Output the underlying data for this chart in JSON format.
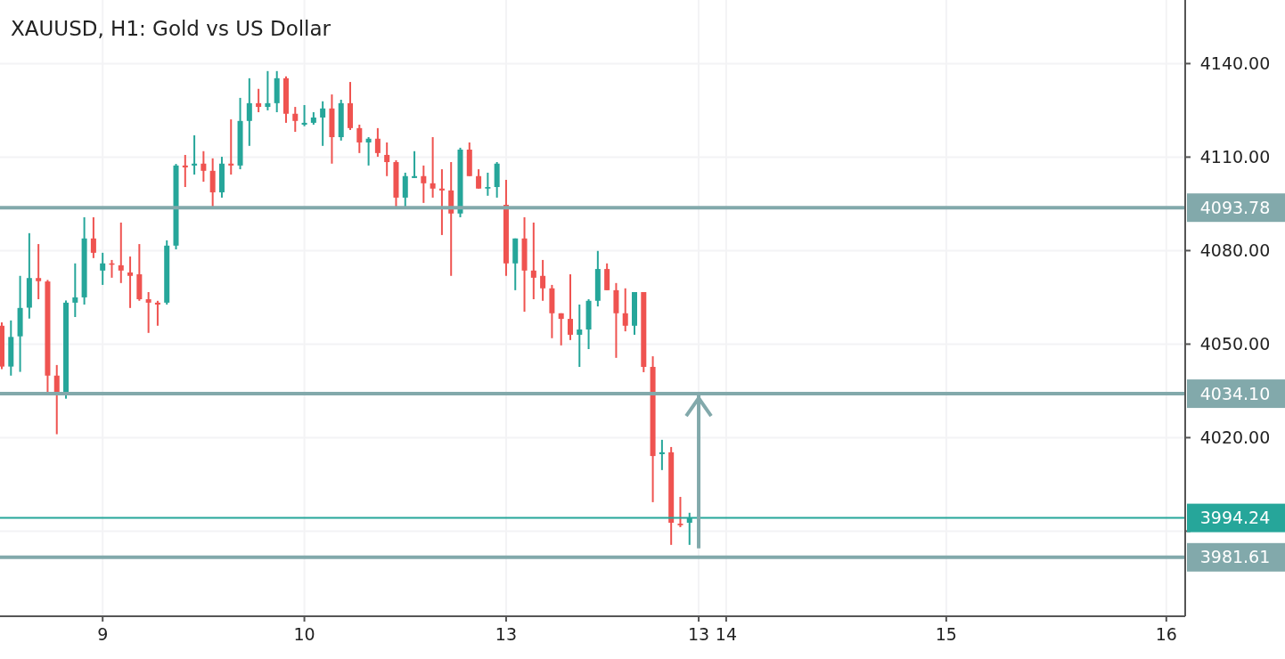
{
  "chart_data": {
    "type": "candlestick",
    "title": "XAUUSD, H1: Gold vs US Dollar",
    "categories": [
      null,
      null,
      null,
      null,
      null,
      null,
      null,
      null,
      null,
      null,
      null,
      "9",
      null,
      null,
      null,
      null,
      null,
      null,
      null,
      null,
      null,
      null,
      null,
      null,
      null,
      null,
      null,
      null,
      null,
      null,
      null,
      null,
      null,
      "10",
      null,
      null,
      null,
      null,
      null,
      null,
      null,
      null,
      null,
      null,
      null,
      null,
      null,
      null,
      null,
      null,
      null,
      null,
      null,
      null,
      null,
      "13",
      null,
      null,
      null,
      null,
      null,
      null,
      null,
      null,
      null,
      null,
      null,
      null,
      null,
      null,
      null,
      null,
      null,
      null,
      null,
      null,
      "13",
      null,
      null,
      "14",
      null,
      null,
      null,
      null,
      null,
      null,
      null,
      null,
      null,
      null,
      null,
      null,
      null,
      null,
      null,
      null,
      null,
      null,
      null,
      null,
      null,
      null,
      null,
      "15",
      null,
      null,
      null,
      null,
      null,
      null,
      null,
      null,
      null,
      null,
      null,
      null,
      null,
      null,
      null,
      null,
      null,
      null,
      null,
      null,
      null,
      null,
      null,
      "16",
      null,
      null
    ],
    "ohlc": [
      [
        4055.9,
        4057,
        4042,
        4042.8
      ],
      [
        4042.8,
        4057.6,
        4039.9,
        4052.3
      ],
      [
        4052.5,
        4071.9,
        4041.1,
        4061.6
      ],
      [
        4061.7,
        4085.6,
        4058.2,
        4071.2
      ],
      [
        4071.2,
        4082.1,
        4064.4,
        4070.2
      ],
      [
        4070.1,
        4070.6,
        4034.2,
        4039.9
      ],
      [
        4039.9,
        4043.3,
        4021.1,
        4033.9
      ],
      [
        4033.9,
        4064,
        4032.5,
        4063.3
      ],
      [
        4063.3,
        4075.9,
        4058.7,
        4065
      ],
      [
        4065,
        4090.7,
        4062.7,
        4083.9
      ],
      [
        4083.9,
        4090.7,
        4077.6,
        4079.3
      ],
      [
        4073.6,
        4079.3,
        4069,
        4075.9
      ],
      [
        4075.9,
        4077,
        4071.3,
        4075.5
      ],
      [
        4075.3,
        4089,
        4069.6,
        4073.6
      ],
      [
        4073,
        4078.1,
        4061.6,
        4071.9
      ],
      [
        4072.4,
        4082.1,
        4063.9,
        4064.4
      ],
      [
        4064.4,
        4066.7,
        4053.6,
        4063.3
      ],
      [
        4063.3,
        4063.9,
        4055.9,
        4062.7
      ],
      [
        4063.3,
        4083.3,
        4062.7,
        4081.6
      ],
      [
        4081.6,
        4107.8,
        4080.4,
        4107.3
      ],
      [
        4107.3,
        4110.7,
        4100.4,
        4106.7
      ],
      [
        4107.3,
        4117,
        4104.4,
        4107.9
      ],
      [
        4107.9,
        4111.9,
        4102.1,
        4105.6
      ],
      [
        4105.6,
        4109.6,
        4093.6,
        4098.7
      ],
      [
        4098.7,
        4110.1,
        4097,
        4107.9
      ],
      [
        4107.9,
        4122.1,
        4104.4,
        4107.3
      ],
      [
        4107.3,
        4129,
        4106.1,
        4121.6
      ],
      [
        4121.6,
        4135.3,
        4113.6,
        4127.3
      ],
      [
        4127.3,
        4131.9,
        4124.4,
        4126.1
      ],
      [
        4126.1,
        4137.6,
        4125,
        4127.3
      ],
      [
        4127.3,
        4137.6,
        4124.4,
        4135.3
      ],
      [
        4135.3,
        4135.9,
        4121,
        4123.9
      ],
      [
        4123.9,
        4126.1,
        4118.1,
        4121.6
      ],
      [
        4120.4,
        4126.7,
        4119.9,
        4121
      ],
      [
        4121,
        4124.4,
        4120.4,
        4122.7
      ],
      [
        4122.7,
        4127.9,
        4113.6,
        4125.6
      ],
      [
        4125.6,
        4130.1,
        4107.9,
        4116.4
      ],
      [
        4116.4,
        4128.4,
        4115.3,
        4127.3
      ],
      [
        4127.3,
        4134.1,
        4118.7,
        4119.3
      ],
      [
        4119.3,
        4120.4,
        4111.3,
        4114.7
      ],
      [
        4114.7,
        4116.4,
        4107.3,
        4115.9
      ],
      [
        4115.9,
        4119.3,
        4110.1,
        4111.3
      ],
      [
        4110.7,
        4114.7,
        4103.9,
        4108.4
      ],
      [
        4108.4,
        4109,
        4094.1,
        4097
      ],
      [
        4097,
        4105,
        4093.6,
        4103.9
      ],
      [
        4103.3,
        4111.9,
        4103.3,
        4103.9
      ],
      [
        4103.9,
        4107.3,
        4095.3,
        4101.6
      ],
      [
        4101.6,
        4116.4,
        4097,
        4099.9
      ],
      [
        4099.9,
        4106.1,
        4085,
        4099.3
      ],
      [
        4099.3,
        4108.4,
        4071.9,
        4091.9
      ],
      [
        4091.9,
        4113,
        4090.7,
        4112.4
      ],
      [
        4112.4,
        4114.7,
        4103.9,
        4103.9
      ],
      [
        4103.9,
        4106.1,
        4099.9,
        4099.9
      ],
      [
        4099.9,
        4105,
        4097.6,
        4100.4
      ],
      [
        4100.4,
        4108.4,
        4097,
        4107.9
      ],
      [
        4094.7,
        4102.7,
        4071.9,
        4075.9
      ],
      [
        4075.9,
        4083.9,
        4067.3,
        4083.9
      ],
      [
        4083.9,
        4090.7,
        4060.4,
        4073.6
      ],
      [
        4073.6,
        4089,
        4064.4,
        4071.3
      ],
      [
        4071.9,
        4077,
        4063.9,
        4067.9
      ],
      [
        4067.9,
        4069,
        4051.9,
        4059.9
      ],
      [
        4059.9,
        4059.9,
        4049.6,
        4058.1
      ],
      [
        4058.1,
        4072.4,
        4051.3,
        4053
      ],
      [
        4053,
        4062.7,
        4042.7,
        4054.7
      ],
      [
        4054.7,
        4064.4,
        4048.4,
        4063.9
      ],
      [
        4063.9,
        4079.9,
        4062.1,
        4074.1
      ],
      [
        4074.1,
        4075.9,
        4067.3,
        4067.3
      ],
      [
        4067.3,
        4069.6,
        4045.6,
        4059.9
      ],
      [
        4059.9,
        4067.9,
        4054.1,
        4055.9
      ],
      [
        4055.9,
        4066.7,
        4053,
        4066.7
      ],
      [
        4066.7,
        4066.7,
        4041,
        4042.7
      ],
      [
        4042.7,
        4046.1,
        3999.3,
        4014.1
      ],
      [
        4014.7,
        4019.3,
        4009.6,
        4015.3
      ],
      [
        4015.3,
        4017,
        3985.6,
        3992.7
      ],
      [
        3992.4,
        4001,
        3991.3,
        3991.9
      ],
      [
        3992.7,
        3995.9,
        3985.6,
        3994.2
      ],
      null,
      null,
      null,
      null,
      null,
      null,
      null,
      null,
      null,
      null,
      null,
      null,
      null,
      null,
      null,
      null,
      null,
      null,
      null,
      null,
      null,
      null,
      null,
      null,
      null,
      null,
      null,
      null,
      null,
      null,
      null,
      null,
      null,
      null,
      null,
      null,
      null,
      null,
      null,
      null,
      null,
      null,
      null,
      null,
      null,
      null,
      null,
      null,
      null,
      null,
      null,
      null,
      null,
      null
    ],
    "colors": [
      "#ef5350",
      "#26a69a",
      "#26a69a",
      "#26a69a",
      "#ef5350",
      "#ef5350",
      "#ef5350",
      "#26a69a",
      "#26a69a",
      "#26a69a",
      "#ef5350",
      "#26a69a",
      "#ef5350",
      "#ef5350",
      "#ef5350",
      "#ef5350",
      "#ef5350",
      "#ef5350",
      "#26a69a",
      "#26a69a",
      "#ef5350",
      "#26a69a",
      "#ef5350",
      "#ef5350",
      "#26a69a",
      "#ef5350",
      "#26a69a",
      "#26a69a",
      "#ef5350",
      "#26a69a",
      "#26a69a",
      "#ef5350",
      "#ef5350",
      "#26a69a",
      "#26a69a",
      "#26a69a",
      "#ef5350",
      "#26a69a",
      "#ef5350",
      "#ef5350",
      "#26a69a",
      "#ef5350",
      "#ef5350",
      "#ef5350",
      "#26a69a",
      "#26a69a",
      "#ef5350",
      "#ef5350",
      "#ef5350",
      "#ef5350",
      "#26a69a",
      "#ef5350",
      "#ef5350",
      "#26a69a",
      "#26a69a",
      "#ef5350",
      "#26a69a",
      "#ef5350",
      "#ef5350",
      "#ef5350",
      "#ef5350",
      "#ef5350",
      "#ef5350",
      "#26a69a",
      "#26a69a",
      "#26a69a",
      "#ef5350",
      "#ef5350",
      "#ef5350",
      "#26a69a",
      "#ef5350",
      "#ef5350",
      "#26a69a",
      "#ef5350",
      "#ef5350",
      "#26a69a",
      null,
      null,
      null,
      null,
      null,
      null,
      null,
      null,
      null,
      null,
      null,
      null,
      null,
      null,
      null,
      null,
      null,
      null,
      null,
      null,
      null,
      null,
      null,
      null,
      null,
      null,
      null,
      null,
      null,
      null,
      null,
      null,
      null,
      null,
      null,
      null,
      null,
      null,
      null,
      null,
      null,
      null,
      null,
      null,
      null,
      null,
      null,
      null,
      null,
      null,
      null,
      null,
      null,
      null
    ],
    "ylim": [
      3962.7,
      4160.4
    ],
    "yticks": [
      {
        "value": 4140,
        "label": "4140.00"
      },
      {
        "value": 4110,
        "label": "4110.00"
      },
      {
        "value": 4080,
        "label": "4080.00"
      },
      {
        "value": 4050,
        "label": "4050.00"
      },
      {
        "value": 4020,
        "label": "4020.00"
      },
      {
        "value": 3990,
        "label": null
      }
    ],
    "grid": true,
    "ref_lines": [
      {
        "axis": "y",
        "value": 4093.78,
        "label": "4093.78",
        "color": "#82a9ab"
      },
      {
        "axis": "y",
        "value": 4034.1,
        "label": "4034.10",
        "color": "#82a9ab"
      },
      {
        "axis": "y",
        "value": 3994.24,
        "label": "3994.24",
        "color": "#26a69a"
      },
      {
        "axis": "y",
        "value": 3981.61,
        "label": "3981.61",
        "color": "#82a9ab"
      }
    ]
  }
}
